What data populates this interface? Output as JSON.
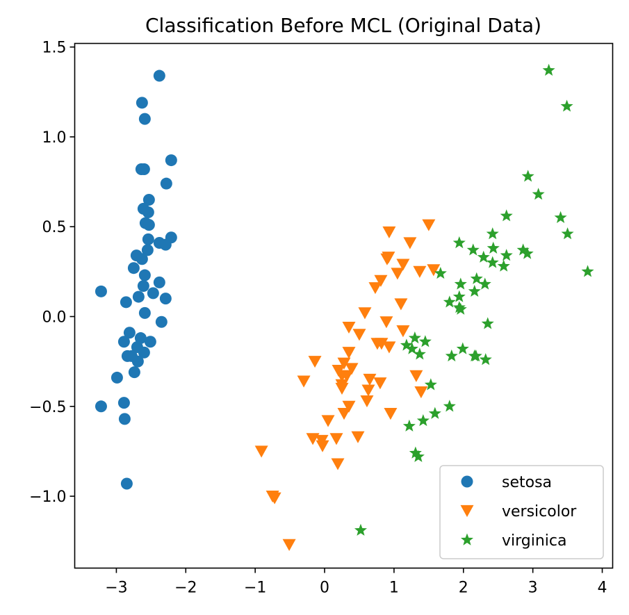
{
  "chart_data": {
    "type": "scatter",
    "title": "Classification Before MCL (Original Data)",
    "xlabel": "",
    "ylabel": "",
    "xlim": [
      -3.6,
      4.15
    ],
    "ylim": [
      -1.4,
      1.52
    ],
    "x_ticks": [
      -3,
      -2,
      -1,
      0,
      1,
      2,
      3,
      4
    ],
    "x_tick_labels": [
      "−3",
      "−2",
      "−1",
      "0",
      "1",
      "2",
      "3",
      "4"
    ],
    "y_ticks": [
      -1.0,
      -0.5,
      0.0,
      0.5,
      1.0,
      1.5
    ],
    "y_tick_labels": [
      "−1.0",
      "−0.5",
      "0.0",
      "0.5",
      "1.0",
      "1.5"
    ],
    "grid": false,
    "legend_position": "bottom-right",
    "series": [
      {
        "name": "setosa",
        "marker": "circle",
        "color": "#1f77b4",
        "points": [
          [
            -2.38,
            1.34
          ],
          [
            -2.63,
            1.19
          ],
          [
            -2.59,
            1.1
          ],
          [
            -2.21,
            0.87
          ],
          [
            -2.64,
            0.82
          ],
          [
            -2.6,
            0.82
          ],
          [
            -2.28,
            0.74
          ],
          [
            -2.53,
            0.65
          ],
          [
            -2.61,
            0.6
          ],
          [
            -2.54,
            0.58
          ],
          [
            -2.58,
            0.52
          ],
          [
            -2.53,
            0.51
          ],
          [
            -2.21,
            0.44
          ],
          [
            -2.54,
            0.43
          ],
          [
            -2.38,
            0.41
          ],
          [
            -2.29,
            0.4
          ],
          [
            -2.55,
            0.37
          ],
          [
            -2.71,
            0.34
          ],
          [
            -2.63,
            0.32
          ],
          [
            -2.75,
            0.27
          ],
          [
            -2.59,
            0.23
          ],
          [
            -2.38,
            0.19
          ],
          [
            -2.61,
            0.17
          ],
          [
            -3.22,
            0.14
          ],
          [
            -2.47,
            0.13
          ],
          [
            -2.68,
            0.11
          ],
          [
            -2.29,
            0.1
          ],
          [
            -2.86,
            0.08
          ],
          [
            -2.59,
            0.02
          ],
          [
            -2.35,
            -0.03
          ],
          [
            -2.81,
            -0.09
          ],
          [
            -2.65,
            -0.12
          ],
          [
            -2.89,
            -0.14
          ],
          [
            -2.51,
            -0.14
          ],
          [
            -2.7,
            -0.17
          ],
          [
            -2.6,
            -0.2
          ],
          [
            -2.84,
            -0.22
          ],
          [
            -2.78,
            -0.22
          ],
          [
            -2.69,
            -0.25
          ],
          [
            -2.74,
            -0.31
          ],
          [
            -2.99,
            -0.34
          ],
          [
            -2.89,
            -0.48
          ],
          [
            -3.22,
            -0.5
          ],
          [
            -2.88,
            -0.57
          ],
          [
            -2.85,
            -0.93
          ]
        ]
      },
      {
        "name": "versicolor",
        "marker": "triangle-down",
        "color": "#ff7f0e",
        "points": [
          [
            0.93,
            0.47
          ],
          [
            1.5,
            0.51
          ],
          [
            1.23,
            0.41
          ],
          [
            0.92,
            0.33
          ],
          [
            0.9,
            0.32
          ],
          [
            1.13,
            0.29
          ],
          [
            1.57,
            0.26
          ],
          [
            1.37,
            0.25
          ],
          [
            1.05,
            0.24
          ],
          [
            0.81,
            0.2
          ],
          [
            0.73,
            0.16
          ],
          [
            1.1,
            0.07
          ],
          [
            0.58,
            0.02
          ],
          [
            1.13,
            -0.08
          ],
          [
            0.35,
            -0.06
          ],
          [
            0.89,
            -0.03
          ],
          [
            0.5,
            -0.1
          ],
          [
            0.82,
            -0.15
          ],
          [
            0.93,
            -0.17
          ],
          [
            0.76,
            -0.15
          ],
          [
            0.35,
            -0.2
          ],
          [
            0.28,
            -0.26
          ],
          [
            -0.14,
            -0.25
          ],
          [
            0.2,
            -0.3
          ],
          [
            0.39,
            -0.29
          ],
          [
            0.25,
            -0.33
          ],
          [
            0.32,
            -0.33
          ],
          [
            0.65,
            -0.35
          ],
          [
            1.32,
            -0.33
          ],
          [
            -0.3,
            -0.36
          ],
          [
            0.25,
            -0.38
          ],
          [
            0.8,
            -0.37
          ],
          [
            0.25,
            -0.4
          ],
          [
            0.63,
            -0.41
          ],
          [
            1.39,
            -0.42
          ],
          [
            0.35,
            -0.5
          ],
          [
            0.61,
            -0.47
          ],
          [
            0.95,
            -0.54
          ],
          [
            0.28,
            -0.54
          ],
          [
            0.05,
            -0.58
          ],
          [
            -0.17,
            -0.68
          ],
          [
            -0.04,
            -0.69
          ],
          [
            0.48,
            -0.67
          ],
          [
            0.17,
            -0.68
          ],
          [
            -0.03,
            -0.72
          ],
          [
            0.19,
            -0.82
          ],
          [
            -0.91,
            -0.75
          ],
          [
            -0.75,
            -1.0
          ],
          [
            -0.72,
            -1.01
          ],
          [
            -0.51,
            -1.27
          ]
        ]
      },
      {
        "name": "virginica",
        "marker": "star",
        "color": "#2ca02c",
        "points": [
          [
            3.23,
            1.37
          ],
          [
            3.49,
            1.17
          ],
          [
            2.93,
            0.78
          ],
          [
            3.08,
            0.68
          ],
          [
            2.62,
            0.56
          ],
          [
            3.4,
            0.55
          ],
          [
            2.42,
            0.46
          ],
          [
            3.5,
            0.46
          ],
          [
            1.94,
            0.41
          ],
          [
            2.14,
            0.37
          ],
          [
            2.43,
            0.38
          ],
          [
            2.86,
            0.37
          ],
          [
            2.92,
            0.35
          ],
          [
            2.29,
            0.33
          ],
          [
            2.62,
            0.34
          ],
          [
            2.42,
            0.3
          ],
          [
            2.58,
            0.28
          ],
          [
            1.67,
            0.24
          ],
          [
            3.79,
            0.25
          ],
          [
            2.19,
            0.21
          ],
          [
            1.96,
            0.18
          ],
          [
            2.31,
            0.18
          ],
          [
            2.16,
            0.14
          ],
          [
            1.94,
            0.11
          ],
          [
            1.8,
            0.08
          ],
          [
            1.94,
            0.05
          ],
          [
            1.96,
            0.04
          ],
          [
            2.35,
            -0.04
          ],
          [
            1.3,
            -0.12
          ],
          [
            1.18,
            -0.16
          ],
          [
            1.45,
            -0.14
          ],
          [
            1.26,
            -0.18
          ],
          [
            1.37,
            -0.21
          ],
          [
            1.99,
            -0.18
          ],
          [
            1.83,
            -0.22
          ],
          [
            2.16,
            -0.22
          ],
          [
            2.18,
            -0.22
          ],
          [
            2.32,
            -0.24
          ],
          [
            1.53,
            -0.38
          ],
          [
            1.8,
            -0.5
          ],
          [
            1.59,
            -0.54
          ],
          [
            1.42,
            -0.58
          ],
          [
            1.22,
            -0.61
          ],
          [
            1.31,
            -0.76
          ],
          [
            1.35,
            -0.78
          ],
          [
            0.52,
            -1.19
          ]
        ]
      }
    ]
  }
}
